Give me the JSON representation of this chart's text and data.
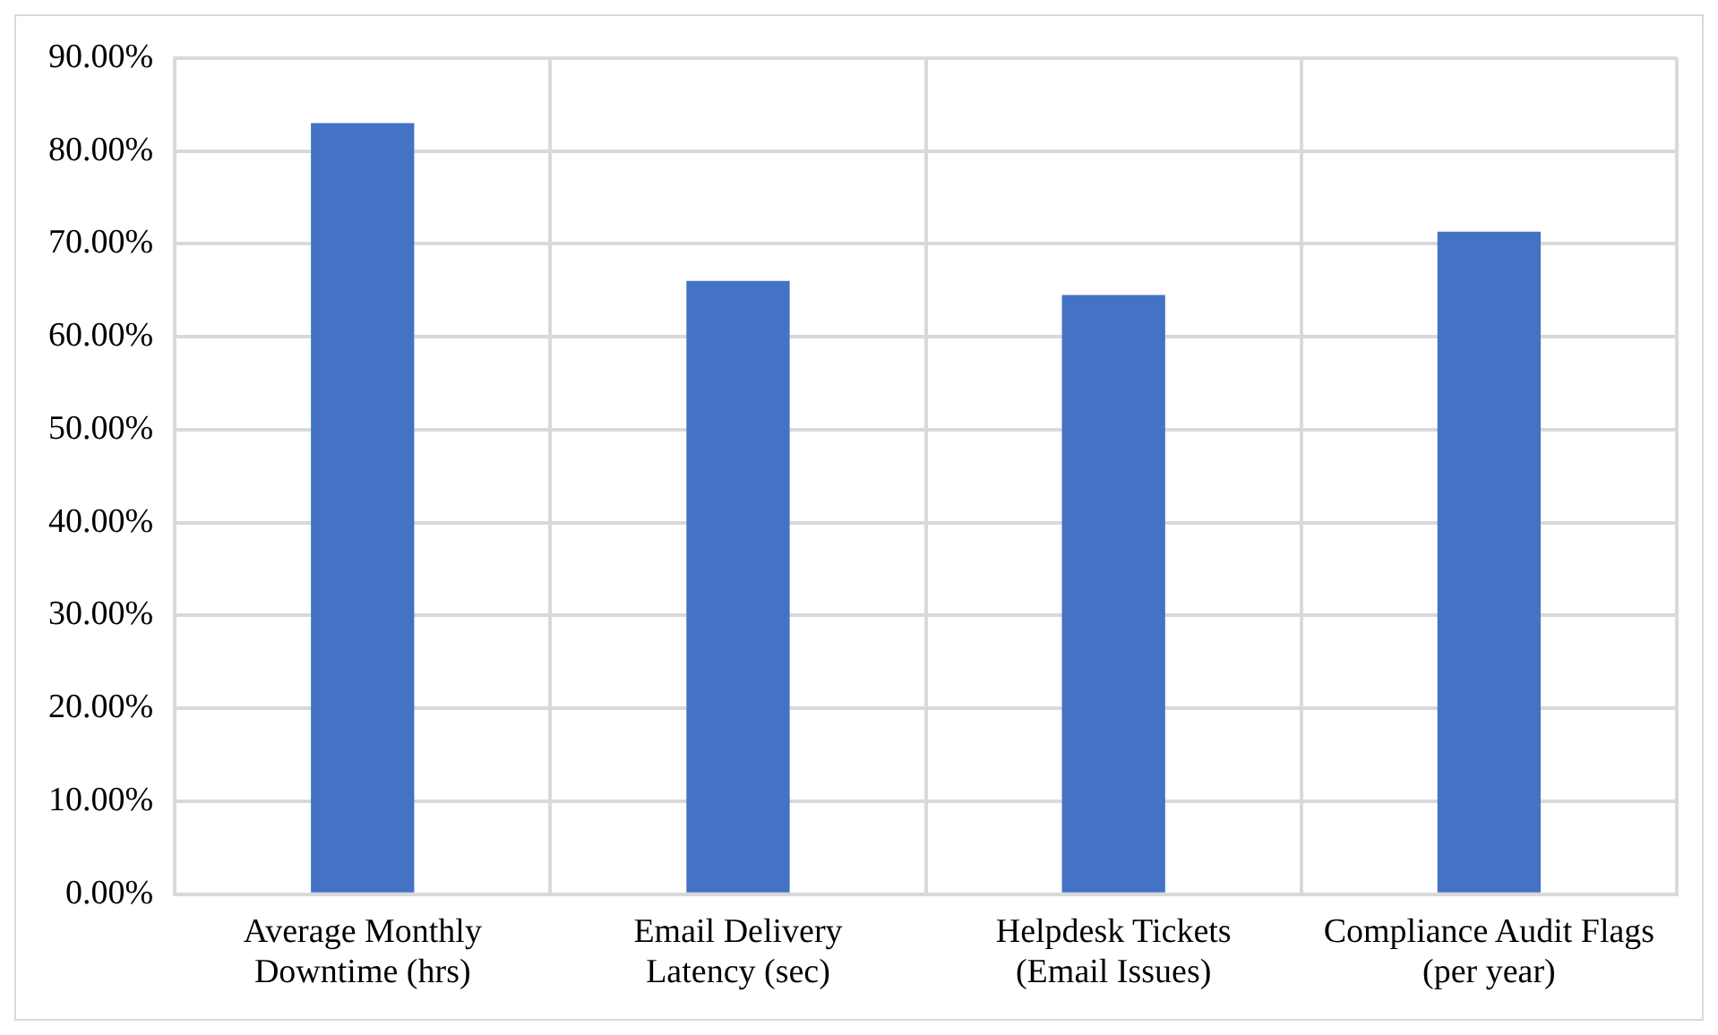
{
  "chart_data": {
    "type": "bar",
    "categories": [
      "Average Monthly Downtime (hrs)",
      "Email Delivery Latency (sec)",
      "Helpdesk Tickets (Email Issues)",
      "Compliance Audit Flags (per year)"
    ],
    "values": [
      83.0,
      66.0,
      64.5,
      71.3
    ],
    "color": "#4472c4",
    "ylim": [
      0,
      90
    ],
    "yticks": [
      {
        "value": 0,
        "label": "0.00%"
      },
      {
        "value": 10,
        "label": "10.00%"
      },
      {
        "value": 20,
        "label": "20.00%"
      },
      {
        "value": 30,
        "label": "30.00%"
      },
      {
        "value": 40,
        "label": "40.00%"
      },
      {
        "value": 50,
        "label": "50.00%"
      },
      {
        "value": 60,
        "label": "60.00%"
      },
      {
        "value": 70,
        "label": "70.00%"
      },
      {
        "value": 80,
        "label": "80.00%"
      },
      {
        "value": 90,
        "label": "90.00%"
      }
    ],
    "grid": true
  }
}
